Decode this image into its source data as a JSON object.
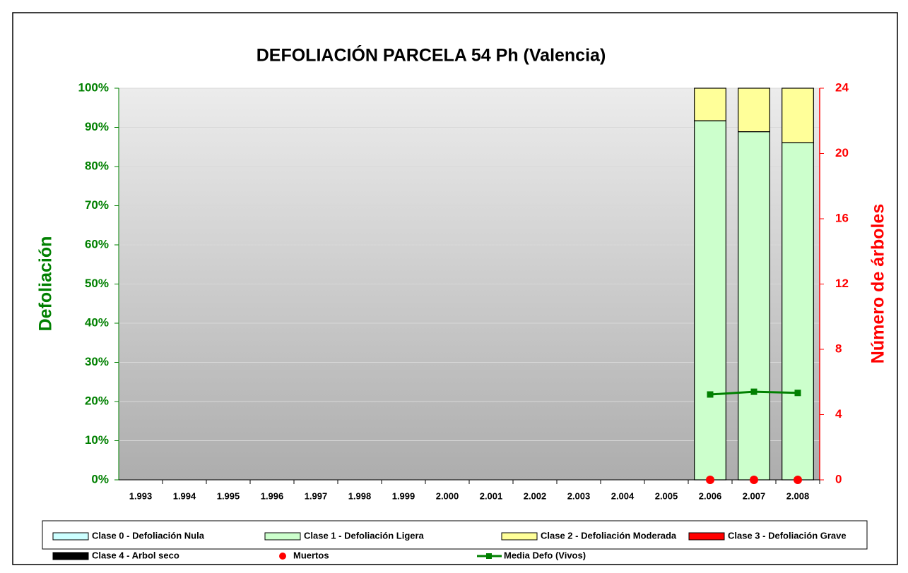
{
  "chart_data": {
    "type": "bar",
    "title": "DEFOLIACIÓN PARCELA 54 Ph (Valencia)",
    "y_label": "Defoliación",
    "y2_label": "Número de árboles",
    "categories": [
      "1.993",
      "1.994",
      "1.995",
      "1.996",
      "1.997",
      "1.998",
      "1.999",
      "2.000",
      "2.001",
      "2.002",
      "2.003",
      "2.004",
      "2.005",
      "2.006",
      "2.007",
      "2.008"
    ],
    "series": [
      {
        "name": "Clase 0 - Defoliación Nula",
        "type": "bar",
        "color": "#ccffff",
        "values": [
          null,
          null,
          null,
          null,
          null,
          null,
          null,
          null,
          null,
          null,
          null,
          null,
          null,
          0,
          0,
          0
        ]
      },
      {
        "name": "Clase 1 - Defoliación Ligera",
        "type": "bar",
        "color": "#ccffcc",
        "values": [
          null,
          null,
          null,
          null,
          null,
          null,
          null,
          null,
          null,
          null,
          null,
          null,
          null,
          91.7,
          88.9,
          86.1
        ]
      },
      {
        "name": "Clase 2 - Defoliación Moderada",
        "type": "bar",
        "color": "#ffff99",
        "values": [
          null,
          null,
          null,
          null,
          null,
          null,
          null,
          null,
          null,
          null,
          null,
          null,
          null,
          8.3,
          11.1,
          13.9
        ]
      },
      {
        "name": "Clase 3 - Defoliación Grave",
        "type": "bar",
        "color": "#ff0000",
        "values": [
          null,
          null,
          null,
          null,
          null,
          null,
          null,
          null,
          null,
          null,
          null,
          null,
          null,
          0,
          0,
          0
        ]
      },
      {
        "name": "Clase 4 - Arbol seco",
        "type": "bar",
        "color": "#000000",
        "values": [
          null,
          null,
          null,
          null,
          null,
          null,
          null,
          null,
          null,
          null,
          null,
          null,
          null,
          0,
          0,
          0
        ]
      },
      {
        "name": "Muertos",
        "type": "scatter",
        "axis": "y2",
        "color": "#ff0000",
        "values": [
          null,
          null,
          null,
          null,
          null,
          null,
          null,
          null,
          null,
          null,
          null,
          null,
          null,
          0,
          0,
          0
        ]
      },
      {
        "name": "Media Defo (Vivos)",
        "type": "line",
        "color": "#008000",
        "values": [
          null,
          null,
          null,
          null,
          null,
          null,
          null,
          null,
          null,
          null,
          null,
          null,
          null,
          21.8,
          22.5,
          22.2
        ]
      }
    ],
    "ylim": [
      0,
      100
    ],
    "yticks": [
      {
        "value": 0,
        "label": "0%"
      },
      {
        "value": 10,
        "label": "10%"
      },
      {
        "value": 20,
        "label": "20%"
      },
      {
        "value": 30,
        "label": "30%"
      },
      {
        "value": 40,
        "label": "40%"
      },
      {
        "value": 50,
        "label": "50%"
      },
      {
        "value": 60,
        "label": "60%"
      },
      {
        "value": 70,
        "label": "70%"
      },
      {
        "value": 80,
        "label": "80%"
      },
      {
        "value": 90,
        "label": "90%"
      },
      {
        "value": 100,
        "label": "100%"
      }
    ],
    "y2lim": [
      0,
      24
    ],
    "y2ticks": [
      0,
      4,
      8,
      12,
      16,
      20,
      24
    ],
    "grid": true,
    "legend": "bottom"
  }
}
